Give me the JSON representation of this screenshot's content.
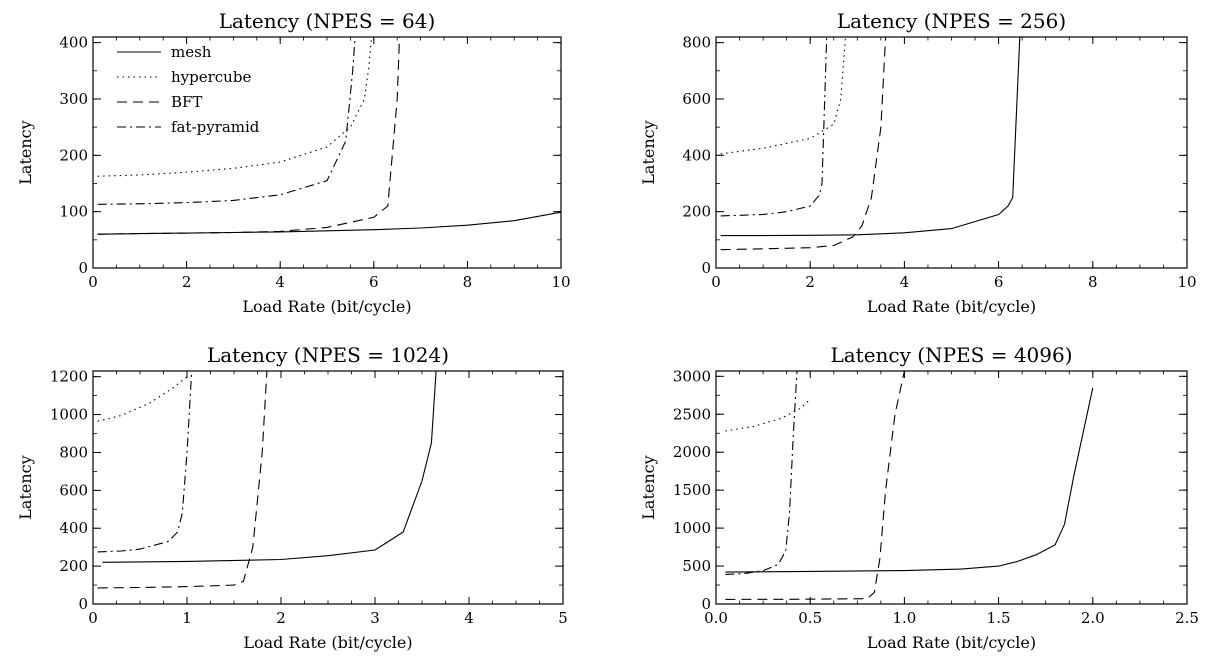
{
  "chart_data": [
    {
      "type": "line",
      "title": "Latency (NPES = 64)",
      "xlabel": "Load Rate (bit/cycle)",
      "ylabel": "Latency",
      "xlim": [
        0,
        10
      ],
      "ylim": [
        0,
        410
      ],
      "xticks": [
        0,
        2,
        4,
        6,
        8,
        10
      ],
      "xtick_labels": [
        "0",
        "2",
        "4",
        "6",
        "8",
        "10"
      ],
      "yticks": [
        0,
        100,
        200,
        300,
        400
      ],
      "ytick_labels": [
        "0",
        "100",
        "200",
        "300",
        "400"
      ],
      "legend": {
        "position": "top-left",
        "entries": [
          "mesh",
          "hypercube",
          "BFT",
          "fat-pyramid"
        ]
      },
      "series": [
        {
          "name": "mesh",
          "style": "solid",
          "x": [
            0.1,
            1,
            2,
            3,
            4,
            5,
            6,
            7,
            8,
            9,
            10
          ],
          "y": [
            60,
            61,
            62,
            63,
            64,
            66,
            68,
            71,
            76,
            84,
            99
          ]
        },
        {
          "name": "hypercube",
          "style": "dotted",
          "x": [
            0.1,
            1,
            2,
            3,
            4,
            5,
            5.5,
            5.8,
            5.9,
            5.95
          ],
          "y": [
            163,
            165,
            170,
            177,
            188,
            215,
            250,
            300,
            360,
            410
          ]
        },
        {
          "name": "BFT",
          "style": "dashed",
          "x": [
            0.1,
            1,
            2,
            3,
            4,
            5,
            6,
            6.3,
            6.5,
            6.55
          ],
          "y": [
            60,
            61,
            62,
            63,
            65,
            72,
            90,
            110,
            300,
            410
          ]
        },
        {
          "name": "fat-pyramid",
          "style": "dashdot",
          "x": [
            0.1,
            1,
            2,
            3,
            4,
            5,
            5.4,
            5.55,
            5.6
          ],
          "y": [
            113,
            114,
            116,
            120,
            130,
            155,
            225,
            350,
            410
          ]
        }
      ]
    },
    {
      "type": "line",
      "title": "Latency (NPES = 256)",
      "xlabel": "Load Rate (bit/cycle)",
      "ylabel": "Latency",
      "xlim": [
        0,
        10
      ],
      "ylim": [
        0,
        820
      ],
      "xticks": [
        0,
        2,
        4,
        6,
        8,
        10
      ],
      "xtick_labels": [
        "0",
        "2",
        "4",
        "6",
        "8",
        "10"
      ],
      "yticks": [
        0,
        200,
        400,
        600,
        800
      ],
      "ytick_labels": [
        "0",
        "200",
        "400",
        "600",
        "800"
      ],
      "series": [
        {
          "name": "mesh",
          "style": "solid",
          "x": [
            0.1,
            1,
            2,
            3,
            4,
            5,
            6,
            6.2,
            6.3,
            6.45
          ],
          "y": [
            115,
            115,
            116,
            118,
            125,
            140,
            190,
            220,
            250,
            820
          ]
        },
        {
          "name": "hypercube",
          "style": "dotted",
          "x": [
            0.1,
            1,
            2,
            2.5,
            2.65,
            2.75
          ],
          "y": [
            405,
            425,
            460,
            510,
            600,
            820
          ]
        },
        {
          "name": "BFT",
          "style": "dashed",
          "x": [
            0.1,
            1,
            2,
            2.5,
            2.9,
            3.1,
            3.3,
            3.5,
            3.6
          ],
          "y": [
            65,
            68,
            72,
            80,
            110,
            150,
            250,
            500,
            820
          ]
        },
        {
          "name": "fat-pyramid",
          "style": "dashdot",
          "x": [
            0.1,
            1,
            1.5,
            2,
            2.2,
            2.25,
            2.35
          ],
          "y": [
            185,
            190,
            200,
            220,
            260,
            300,
            820
          ]
        }
      ]
    },
    {
      "type": "line",
      "title": "Latency (NPES = 1024)",
      "xlabel": "Load Rate (bit/cycle)",
      "ylabel": "Latency",
      "xlim": [
        0,
        5
      ],
      "ylim": [
        0,
        1230
      ],
      "xticks": [
        0,
        1,
        2,
        3,
        4,
        5
      ],
      "xtick_labels": [
        "0",
        "1",
        "2",
        "3",
        "4",
        "5"
      ],
      "yticks": [
        0,
        200,
        400,
        600,
        800,
        1000,
        1200
      ],
      "ytick_labels": [
        "0",
        "200",
        "400",
        "600",
        "800",
        "1000",
        "1200"
      ],
      "series": [
        {
          "name": "mesh",
          "style": "solid",
          "x": [
            0.1,
            1,
            2,
            2.5,
            3,
            3.3,
            3.5,
            3.6,
            3.65
          ],
          "y": [
            220,
            225,
            235,
            255,
            285,
            380,
            650,
            850,
            1230
          ]
        },
        {
          "name": "hypercube",
          "style": "dotted",
          "x": [
            0.05,
            0.3,
            0.6,
            0.85,
            1.0
          ],
          "y": [
            965,
            995,
            1060,
            1140,
            1200
          ]
        },
        {
          "name": "BFT",
          "style": "dashed",
          "x": [
            0.05,
            0.5,
            1.0,
            1.5,
            1.6,
            1.7,
            1.8,
            1.85
          ],
          "y": [
            85,
            87,
            92,
            100,
            120,
            300,
            800,
            1230
          ]
        },
        {
          "name": "fat-pyramid",
          "style": "dashdot",
          "x": [
            0.05,
            0.3,
            0.5,
            0.8,
            0.9,
            0.95,
            1.0,
            1.05
          ],
          "y": [
            275,
            280,
            290,
            330,
            380,
            480,
            800,
            1230
          ]
        }
      ]
    },
    {
      "type": "line",
      "title": "Latency (NPES = 4096)",
      "xlabel": "Load Rate (bit/cycle)",
      "ylabel": "Latency",
      "xlim": [
        0,
        2.5
      ],
      "ylim": [
        0,
        3070
      ],
      "xticks": [
        0,
        0.5,
        1,
        1.5,
        2,
        2.5
      ],
      "xtick_labels": [
        "0.0",
        "0.5",
        "1.0",
        "1.5",
        "2.0",
        "2.5"
      ],
      "yticks": [
        0,
        500,
        1000,
        1500,
        2000,
        2500,
        3000
      ],
      "ytick_labels": [
        "0",
        "500",
        "1000",
        "1500",
        "2000",
        "2500",
        "3000"
      ],
      "series": [
        {
          "name": "mesh",
          "style": "solid",
          "x": [
            0.05,
            0.5,
            1.0,
            1.3,
            1.5,
            1.6,
            1.7,
            1.8,
            1.85,
            1.9,
            2.0
          ],
          "y": [
            420,
            430,
            440,
            460,
            500,
            560,
            650,
            780,
            1050,
            1700,
            2850
          ]
        },
        {
          "name": "hypercube",
          "style": "dotted",
          "x": [
            0.05,
            0.2,
            0.35,
            0.45,
            0.5
          ],
          "y": [
            2280,
            2340,
            2450,
            2580,
            2700
          ]
        },
        {
          "name": "BFT",
          "style": "dashed",
          "x": [
            0.05,
            0.4,
            0.8,
            0.84,
            0.87,
            0.9,
            0.95,
            1.0
          ],
          "y": [
            60,
            62,
            70,
            150,
            600,
            1500,
            2500,
            3070
          ]
        },
        {
          "name": "fat-pyramid",
          "style": "dashdot",
          "x": [
            0.05,
            0.15,
            0.25,
            0.33,
            0.37,
            0.39,
            0.41,
            0.43
          ],
          "y": [
            390,
            400,
            440,
            520,
            700,
            1200,
            2200,
            3070
          ]
        }
      ]
    }
  ]
}
